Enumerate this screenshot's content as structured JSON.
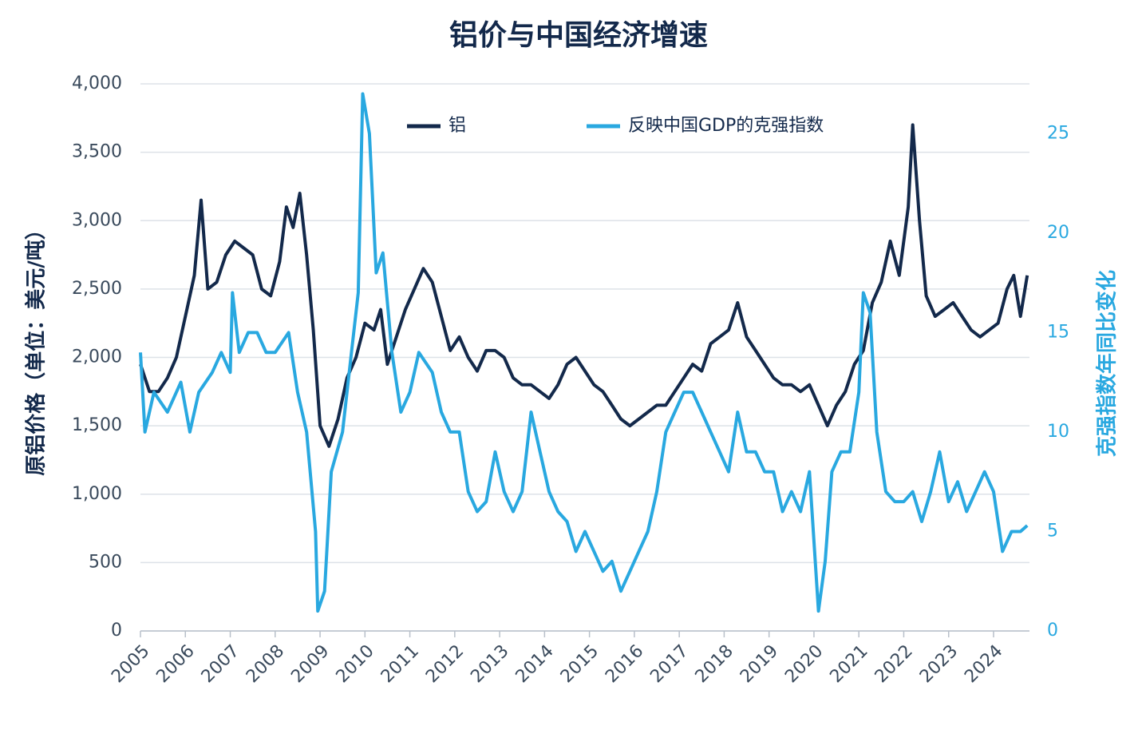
{
  "chart_data": {
    "type": "line",
    "title": "铝价与中国经济增速",
    "y_label": "原铝价格（单位：美元/吨）",
    "y2_label": "克强指数年同比变化",
    "xlim": [
      2005,
      2024.8
    ],
    "xticks": [
      2005,
      2006,
      2007,
      2008,
      2009,
      2010,
      2011,
      2012,
      2013,
      2014,
      2015,
      2016,
      2017,
      2018,
      2019,
      2020,
      2021,
      2022,
      2023,
      2024
    ],
    "ylim": [
      0,
      4000
    ],
    "yticks": [
      0,
      {
        "value": 500,
        "label": "500"
      },
      {
        "value": 1000,
        "label": "1,000"
      },
      {
        "value": 1500,
        "label": "1,500"
      },
      {
        "value": 2000,
        "label": "2,000"
      },
      {
        "value": 2500,
        "label": "2,500"
      },
      {
        "value": 3000,
        "label": "3,000"
      },
      {
        "value": 3500,
        "label": "3,500"
      },
      {
        "value": 4000,
        "label": "4,000"
      }
    ],
    "y2lim": [
      0,
      27.5
    ],
    "y2ticks": [
      0,
      5,
      10,
      15,
      20,
      25
    ],
    "grid": true,
    "legend": "top",
    "series": [
      {
        "name": "铝",
        "color": "#13294b",
        "x": [
          2005.0,
          2005.2,
          2005.4,
          2005.6,
          2005.8,
          2006.0,
          2006.2,
          2006.35,
          2006.5,
          2006.7,
          2006.9,
          2007.1,
          2007.3,
          2007.5,
          2007.7,
          2007.9,
          2008.1,
          2008.25,
          2008.4,
          2008.55,
          2008.7,
          2008.85,
          2009.0,
          2009.2,
          2009.4,
          2009.6,
          2009.8,
          2010.0,
          2010.2,
          2010.35,
          2010.5,
          2010.7,
          2010.9,
          2011.1,
          2011.3,
          2011.5,
          2011.7,
          2011.9,
          2012.1,
          2012.3,
          2012.5,
          2012.7,
          2012.9,
          2013.1,
          2013.3,
          2013.5,
          2013.7,
          2013.9,
          2014.1,
          2014.3,
          2014.5,
          2014.7,
          2014.9,
          2015.1,
          2015.3,
          2015.5,
          2015.7,
          2015.9,
          2016.1,
          2016.3,
          2016.5,
          2016.7,
          2016.9,
          2017.1,
          2017.3,
          2017.5,
          2017.7,
          2017.9,
          2018.1,
          2018.3,
          2018.5,
          2018.7,
          2018.9,
          2019.1,
          2019.3,
          2019.5,
          2019.7,
          2019.9,
          2020.1,
          2020.3,
          2020.5,
          2020.7,
          2020.9,
          2021.1,
          2021.3,
          2021.5,
          2021.7,
          2021.9,
          2022.1,
          2022.2,
          2022.35,
          2022.5,
          2022.7,
          2022.9,
          2023.1,
          2023.3,
          2023.5,
          2023.7,
          2023.9,
          2024.1,
          2024.3,
          2024.45,
          2024.6,
          2024.75
        ],
        "values": [
          1950,
          1750,
          1750,
          1850,
          2000,
          2300,
          2600,
          3150,
          2500,
          2550,
          2750,
          2850,
          2800,
          2750,
          2500,
          2450,
          2700,
          3100,
          2950,
          3200,
          2750,
          2200,
          1500,
          1350,
          1550,
          1850,
          2000,
          2250,
          2200,
          2350,
          1950,
          2150,
          2350,
          2500,
          2650,
          2550,
          2300,
          2050,
          2150,
          2000,
          1900,
          2050,
          2050,
          2000,
          1850,
          1800,
          1800,
          1750,
          1700,
          1800,
          1950,
          2000,
          1900,
          1800,
          1750,
          1650,
          1550,
          1500,
          1550,
          1600,
          1650,
          1650,
          1750,
          1850,
          1950,
          1900,
          2100,
          2150,
          2200,
          2400,
          2150,
          2050,
          1950,
          1850,
          1800,
          1800,
          1750,
          1800,
          1650,
          1500,
          1650,
          1750,
          1950,
          2050,
          2400,
          2550,
          2850,
          2600,
          3100,
          3700,
          3000,
          2450,
          2300,
          2350,
          2400,
          2300,
          2200,
          2150,
          2200,
          2250,
          2500,
          2600,
          2300,
          2600
        ]
      },
      {
        "name": "反映中国GDP的克强指数",
        "color": "#29a8e0",
        "axis": "y2",
        "x": [
          2005.0,
          2005.1,
          2005.3,
          2005.6,
          2005.9,
          2006.1,
          2006.3,
          2006.6,
          2006.8,
          2007.0,
          2007.05,
          2007.2,
          2007.4,
          2007.6,
          2007.8,
          2008.0,
          2008.3,
          2008.5,
          2008.7,
          2008.9,
          2008.95,
          2009.1,
          2009.25,
          2009.5,
          2009.7,
          2009.85,
          2009.95,
          2010.1,
          2010.25,
          2010.4,
          2010.6,
          2010.8,
          2011.0,
          2011.2,
          2011.5,
          2011.7,
          2011.9,
          2012.1,
          2012.3,
          2012.5,
          2012.7,
          2012.9,
          2013.1,
          2013.3,
          2013.5,
          2013.7,
          2013.9,
          2014.1,
          2014.3,
          2014.5,
          2014.7,
          2014.9,
          2015.1,
          2015.3,
          2015.5,
          2015.7,
          2015.9,
          2016.1,
          2016.3,
          2016.5,
          2016.7,
          2016.9,
          2017.1,
          2017.3,
          2017.5,
          2017.7,
          2017.9,
          2018.1,
          2018.3,
          2018.5,
          2018.7,
          2018.9,
          2019.1,
          2019.3,
          2019.5,
          2019.7,
          2019.9,
          2020.1,
          2020.25,
          2020.4,
          2020.6,
          2020.8,
          2021.0,
          2021.1,
          2021.25,
          2021.4,
          2021.6,
          2021.8,
          2022.0,
          2022.2,
          2022.4,
          2022.6,
          2022.8,
          2023.0,
          2023.2,
          2023.4,
          2023.6,
          2023.8,
          2024.0,
          2024.2,
          2024.4,
          2024.6,
          2024.75
        ],
        "values": [
          14,
          10,
          12,
          11,
          12.5,
          10,
          12,
          13,
          14,
          13,
          17,
          14,
          15,
          15,
          14,
          14,
          15,
          12,
          10,
          5,
          1,
          2,
          8,
          10,
          14,
          17,
          27,
          25,
          18,
          19,
          14,
          11,
          12,
          14,
          13,
          11,
          10,
          10,
          7,
          6,
          6.5,
          9,
          7,
          6,
          7,
          11,
          9,
          7,
          6,
          5.5,
          4,
          5,
          4,
          3,
          3.5,
          2,
          3,
          4,
          5,
          7,
          10,
          11,
          12,
          12,
          11,
          10,
          9,
          8,
          11,
          9,
          9,
          8,
          8,
          6,
          7,
          6,
          8,
          1,
          3.5,
          8,
          9,
          9,
          12,
          17,
          16,
          10,
          7,
          6.5,
          6.5,
          7,
          5.5,
          7,
          9,
          6.5,
          7.5,
          6,
          7,
          8,
          7,
          4,
          5,
          5,
          5.3
        ]
      }
    ]
  }
}
